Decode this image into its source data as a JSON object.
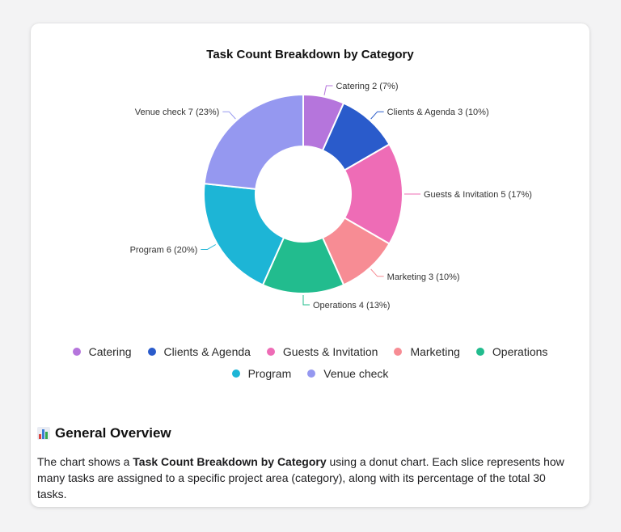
{
  "colors": {
    "Catering": "#b575dc",
    "Clients & Agenda": "#2a5bcb",
    "Guests & Invitation": "#ee6cb6",
    "Marketing": "#f78c94",
    "Operations": "#22bc8e",
    "Program": "#1db5d6",
    "Venue check": "#9598f0"
  },
  "chart_data": {
    "type": "pie",
    "title": "Task Count Breakdown by Category",
    "donut": true,
    "total": 30,
    "legend_position": "bottom",
    "slices": [
      {
        "label": "Catering",
        "value": 2,
        "percent": 7,
        "text": "Catering 2 (7%)"
      },
      {
        "label": "Clients & Agenda",
        "value": 3,
        "percent": 10,
        "text": "Clients & Agenda 3 (10%)"
      },
      {
        "label": "Guests & Invitation",
        "value": 5,
        "percent": 17,
        "text": "Guests & Invitation 5 (17%)"
      },
      {
        "label": "Marketing",
        "value": 3,
        "percent": 10,
        "text": "Marketing 3 (10%)"
      },
      {
        "label": "Operations",
        "value": 4,
        "percent": 13,
        "text": "Operations 4 (13%)"
      },
      {
        "label": "Program",
        "value": 6,
        "percent": 20,
        "text": "Program 6 (20%)"
      },
      {
        "label": "Venue check",
        "value": 7,
        "percent": 23,
        "text": "Venue check 7 (23%)"
      }
    ]
  },
  "legend": {
    "items": [
      "Catering",
      "Clients & Agenda",
      "Guests & Invitation",
      "Marketing",
      "Operations",
      "Program",
      "Venue check"
    ]
  },
  "overview": {
    "icon": "bar-chart-icon",
    "title": "General Overview",
    "text_before": "The chart shows a ",
    "text_bold": "Task Count Breakdown by Category",
    "text_after": " using a donut chart. Each slice represents how many tasks are assigned to a specific project area (category), along with its percentage of the total 30 tasks."
  }
}
